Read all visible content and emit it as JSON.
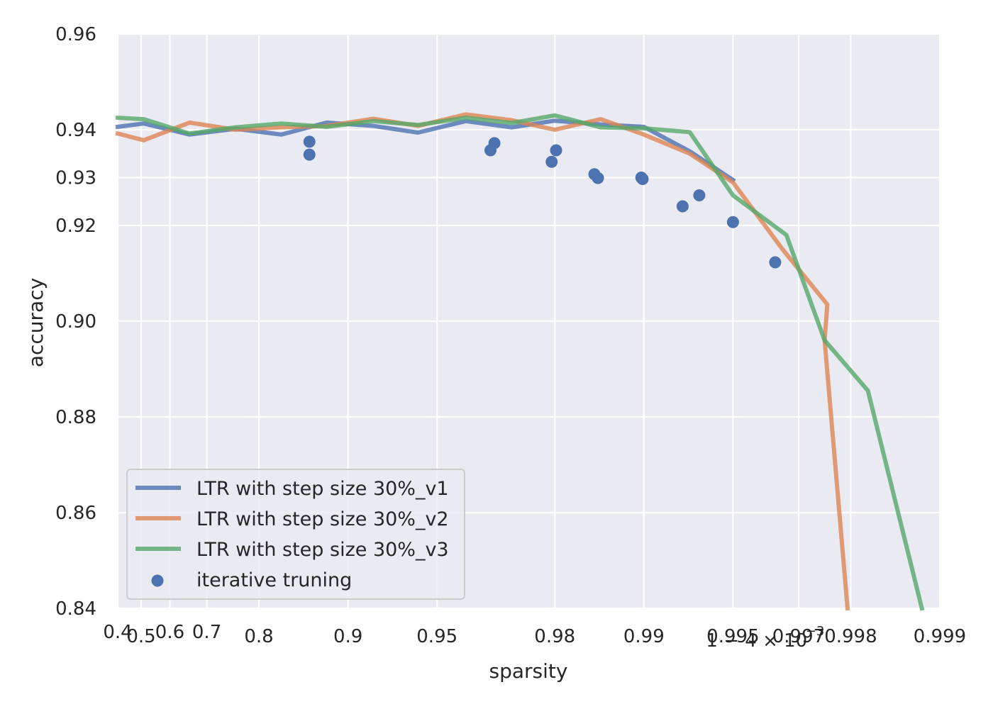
{
  "chart_data": {
    "type": "line",
    "xlabel": "sparsity",
    "ylabel": "accuracy",
    "xscale": "log of (1 - sparsity)",
    "xlim": [
      0.4,
      0.999
    ],
    "ylim": [
      0.84,
      0.96
    ],
    "grid": true,
    "legend_position": "lower-left",
    "x_ticks": [
      "0.4",
      "0.5",
      "0.6",
      "0.7",
      "0.8",
      "0.9",
      "0.95",
      "0.98",
      "0.99",
      "0.995",
      "0.997",
      "0.998",
      "0.999"
    ],
    "x_ticks_values": [
      0.4,
      0.5,
      0.6,
      0.7,
      0.8,
      0.9,
      0.95,
      0.98,
      0.99,
      0.995,
      0.997,
      0.998,
      0.999
    ],
    "x_overlap_label": "1 − 4 × 10",
    "x_overlap_exponent": "−3",
    "x_overlap_value": 0.996,
    "y_ticks": [
      "0.84",
      "0.86",
      "0.88",
      "0.90",
      "0.92",
      "0.93",
      "0.94",
      "0.96"
    ],
    "y_ticks_values": [
      0.84,
      0.86,
      0.88,
      0.9,
      0.92,
      0.93,
      0.94,
      0.96
    ],
    "series": [
      {
        "name": "LTR with step size 30%_v1",
        "color": "#4c72b0",
        "x": [
          0.4,
          0.51,
          0.657,
          0.76,
          0.832,
          0.882,
          0.918,
          0.942,
          0.96,
          0.972,
          0.98,
          0.986,
          0.99,
          0.993,
          0.995
        ],
        "y": [
          0.9406,
          0.9413,
          0.939,
          0.9402,
          0.939,
          0.9415,
          0.9408,
          0.9394,
          0.9418,
          0.9405,
          0.9419,
          0.9411,
          0.9406,
          0.9355,
          0.9295
        ]
      },
      {
        "name": "LTR with step size 30%_v2",
        "color": "#dd8452",
        "x": [
          0.4,
          0.51,
          0.657,
          0.76,
          0.832,
          0.882,
          0.918,
          0.942,
          0.96,
          0.972,
          0.98,
          0.986,
          0.99,
          0.993,
          0.995,
          0.9966,
          0.9976,
          0.99755,
          0.99795
        ],
        "y": [
          0.9392,
          0.9378,
          0.9415,
          0.94,
          0.9405,
          0.9408,
          0.9423,
          0.9408,
          0.9432,
          0.942,
          0.94,
          0.9422,
          0.939,
          0.935,
          0.929,
          0.915,
          0.9035,
          0.896,
          0.84
        ]
      },
      {
        "name": "LTR with step size 30%_v3",
        "color": "#55a868",
        "x": [
          0.4,
          0.51,
          0.657,
          0.76,
          0.832,
          0.882,
          0.918,
          0.942,
          0.96,
          0.972,
          0.98,
          0.986,
          0.99,
          0.993,
          0.995,
          0.9967,
          0.99755,
          0.99825,
          0.99885
        ],
        "y": [
          0.9425,
          0.9422,
          0.9392,
          0.9405,
          0.9413,
          0.9406,
          0.9418,
          0.941,
          0.9425,
          0.9414,
          0.943,
          0.9405,
          0.9403,
          0.9395,
          0.9263,
          0.918,
          0.896,
          0.8855,
          0.84
        ]
      }
    ],
    "scatter": {
      "name": "iterative truning",
      "color": "#4c72b0",
      "x": [
        0.865,
        0.865,
        0.967,
        0.968,
        0.9795,
        0.9802,
        0.9853,
        0.9857,
        0.9898,
        0.9899,
        0.9926,
        0.9935,
        0.995,
        0.9964
      ],
      "y": [
        0.9375,
        0.9348,
        0.9357,
        0.9372,
        0.9333,
        0.9357,
        0.9307,
        0.9299,
        0.93,
        0.9297,
        0.924,
        0.9263,
        0.9207,
        0.9123
      ]
    }
  }
}
